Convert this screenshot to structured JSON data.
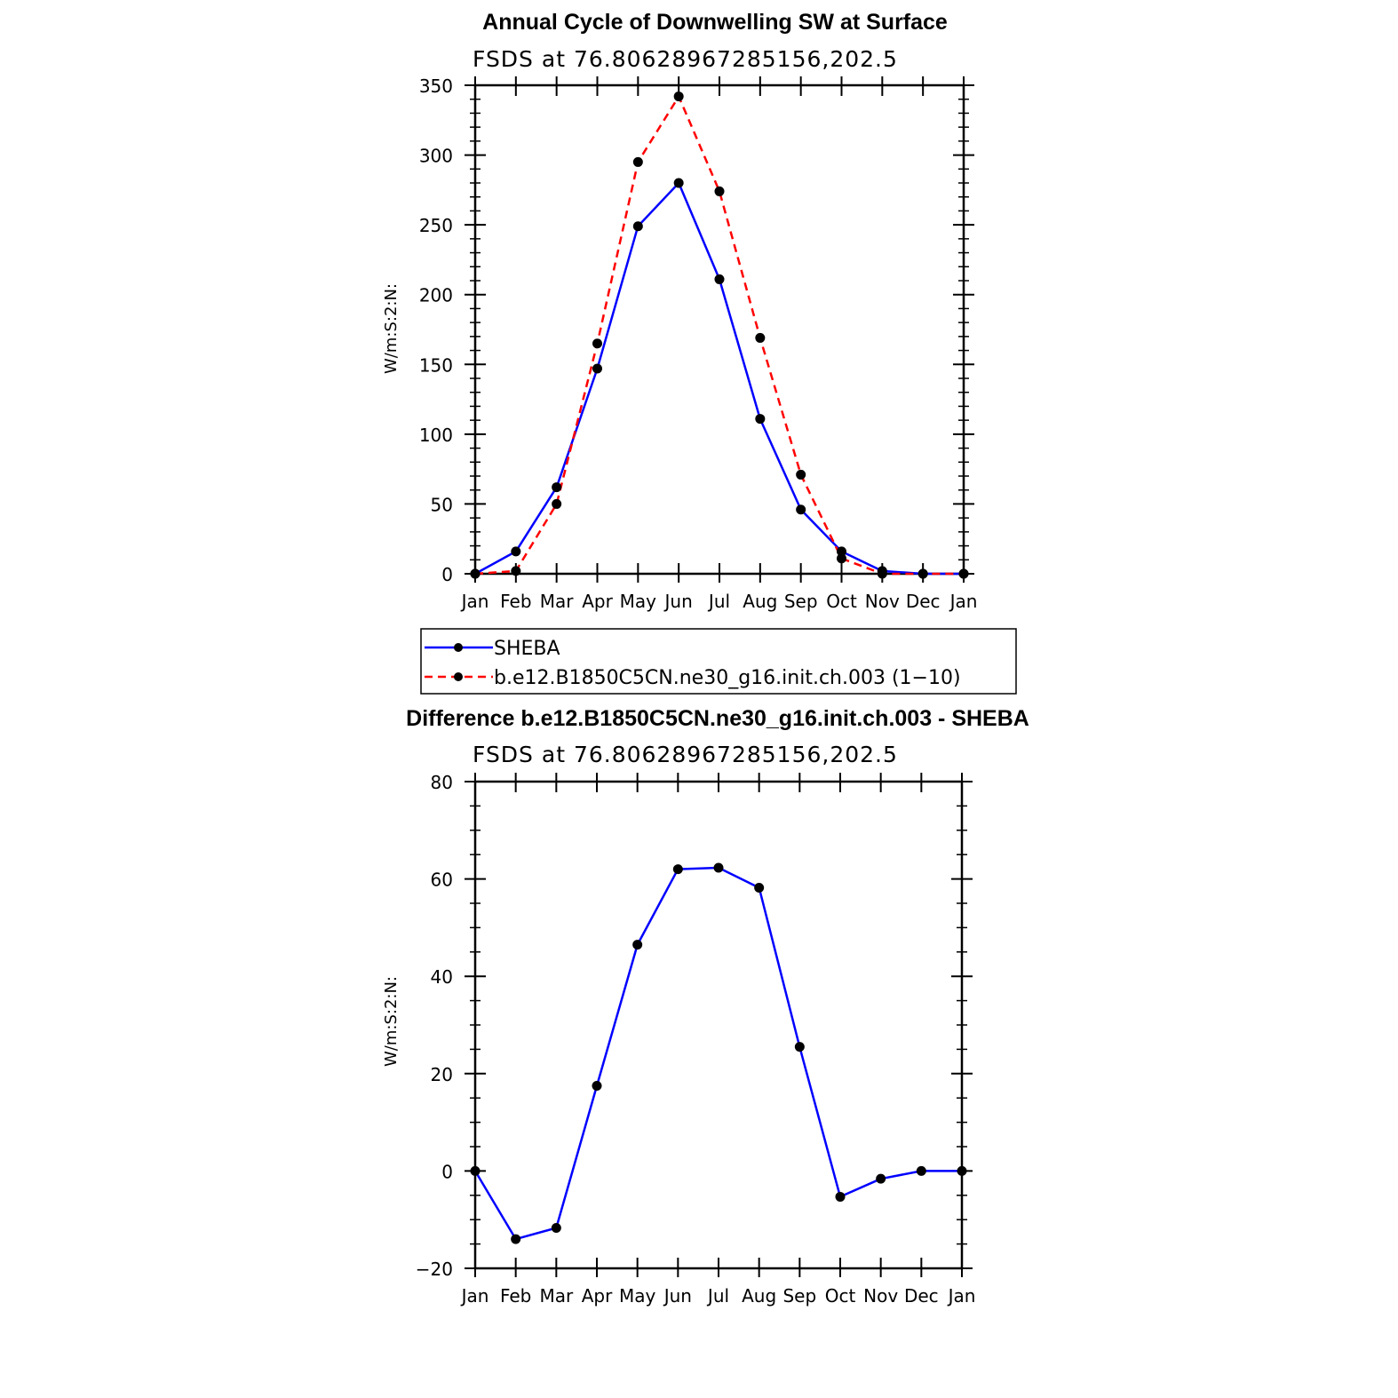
{
  "chart_data": [
    {
      "type": "line",
      "title": "Annual Cycle of Downwelling SW at Surface",
      "subtitle": "FSDS  at  76.80628967285156,202.5",
      "xlabel": "",
      "ylabel": "W/m:S:2:N:",
      "categories": [
        "Jan",
        "Feb",
        "Mar",
        "Apr",
        "May",
        "Jun",
        "Jul",
        "Aug",
        "Sep",
        "Oct",
        "Nov",
        "Dec",
        "Jan"
      ],
      "ylim": [
        0,
        350
      ],
      "yticks": [
        0,
        50,
        100,
        150,
        200,
        250,
        300,
        350
      ],
      "series": [
        {
          "name": "SHEBA",
          "color": "#0000ff",
          "dash": "solid",
          "values": [
            0,
            16,
            62,
            147,
            249,
            280,
            211,
            111,
            46,
            16,
            2,
            0,
            0
          ]
        },
        {
          "name": "b.e12.B1850C5CN.ne30_g16.init.ch.003 (1−10)",
          "color": "#ff0000",
          "dash": "dashed",
          "values": [
            0,
            2,
            50,
            165,
            295,
            342,
            274,
            169,
            71,
            11,
            0,
            0,
            0
          ]
        }
      ]
    },
    {
      "type": "line",
      "title": "Difference b.e12.B1850C5CN.ne30_g16.init.ch.003 - SHEBA",
      "subtitle": "FSDS  at  76.80628967285156,202.5",
      "xlabel": "",
      "ylabel": "W/m:S:2:N:",
      "categories": [
        "Jan",
        "Feb",
        "Mar",
        "Apr",
        "May",
        "Jun",
        "Jul",
        "Aug",
        "Sep",
        "Oct",
        "Nov",
        "Dec",
        "Jan"
      ],
      "ylim": [
        -20,
        80
      ],
      "yticks": [
        -20,
        0,
        20,
        40,
        60,
        80
      ],
      "ytick_labels": [
        "−20",
        "0",
        "20",
        "40",
        "60",
        "80"
      ],
      "series": [
        {
          "name": "difference",
          "color": "#0000ff",
          "dash": "solid",
          "values": [
            0,
            -14,
            -11.7,
            17.5,
            46.5,
            62,
            62.3,
            58.2,
            25.5,
            -5.3,
            -1.6,
            0,
            0
          ]
        }
      ]
    }
  ]
}
